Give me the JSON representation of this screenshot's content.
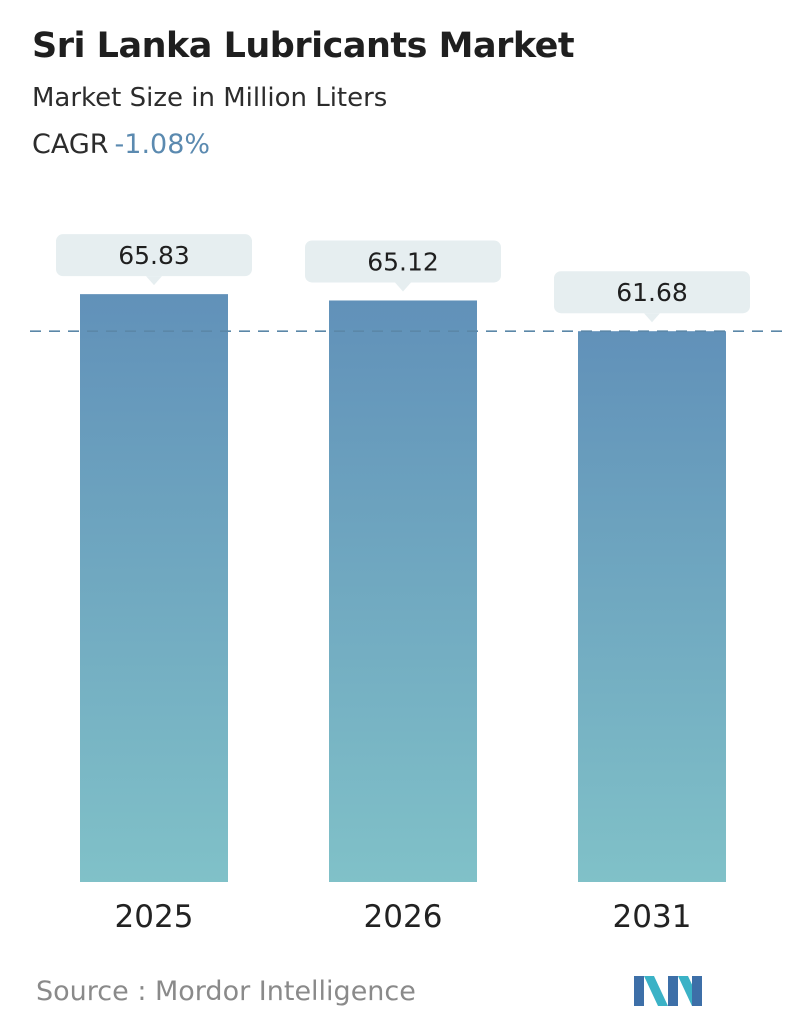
{
  "header": {
    "title": "Sri Lanka Lubricants Market",
    "subtitle": "Market Size in Million Liters",
    "cagr_label": "CAGR",
    "cagr_value": "-1.08%"
  },
  "chart_data": {
    "type": "bar",
    "categories": [
      "2025",
      "2026",
      "2031"
    ],
    "values": [
      65.83,
      65.12,
      61.68
    ],
    "value_labels": [
      "65.83",
      "65.12",
      "61.68"
    ],
    "title": "Sri Lanka Lubricants Market",
    "subtitle": "Market Size in Million Liters",
    "xlabel": "",
    "ylabel": "",
    "reference_line": 61.68,
    "grid": false,
    "legend": "none",
    "colors": {
      "bar_top": "#6191b9",
      "bar_bottom": "#80c1c8",
      "label_bg": "#e6eef0",
      "reference_line": "#5b87a8"
    }
  },
  "footer": {
    "source": "Source :  Mordor Intelligence"
  },
  "logo": {
    "icon": "mordor-intelligence-logo-icon",
    "colors": [
      "#3d6fa8",
      "#3bb2c6"
    ]
  }
}
